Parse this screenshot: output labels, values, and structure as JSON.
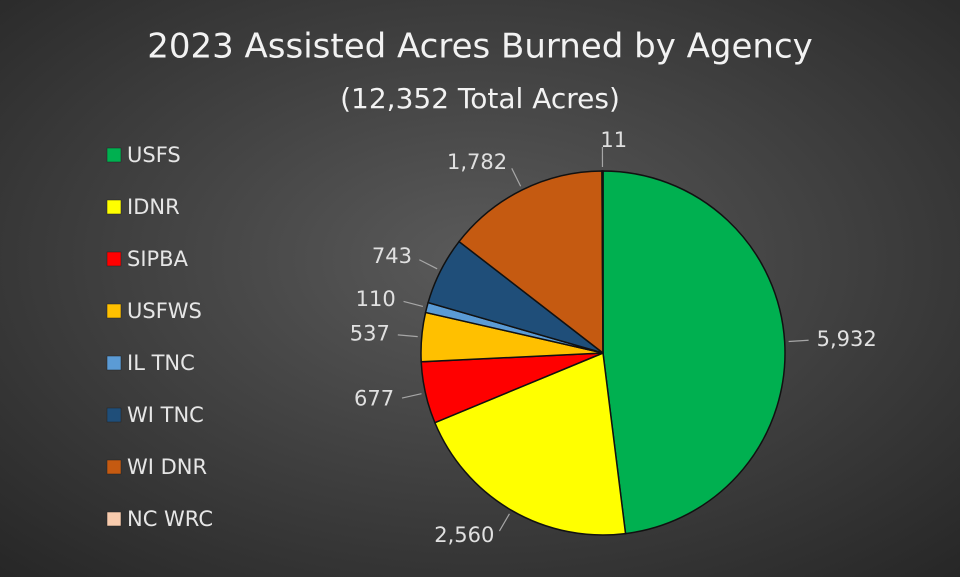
{
  "chart_data": {
    "type": "pie",
    "title": "2023 Assisted Acres Burned by Agency",
    "subtitle": "(12,352 Total Acres)",
    "categories": [
      "USFS",
      "IDNR",
      "SIPBA",
      "USFWS",
      "IL TNC",
      "WI TNC",
      "WI DNR",
      "NC WRC"
    ],
    "values": [
      5932,
      2560,
      677,
      537,
      110,
      743,
      1782,
      11
    ],
    "value_labels": [
      "5,932",
      "2,560",
      "677",
      "537",
      "110",
      "743",
      "1,782",
      "11"
    ],
    "colors": [
      "#00b050",
      "#ffff00",
      "#ff0000",
      "#ffc000",
      "#5b9bd5",
      "#1f4e79",
      "#c55a11",
      "#f8cbad"
    ],
    "legend": "left"
  }
}
